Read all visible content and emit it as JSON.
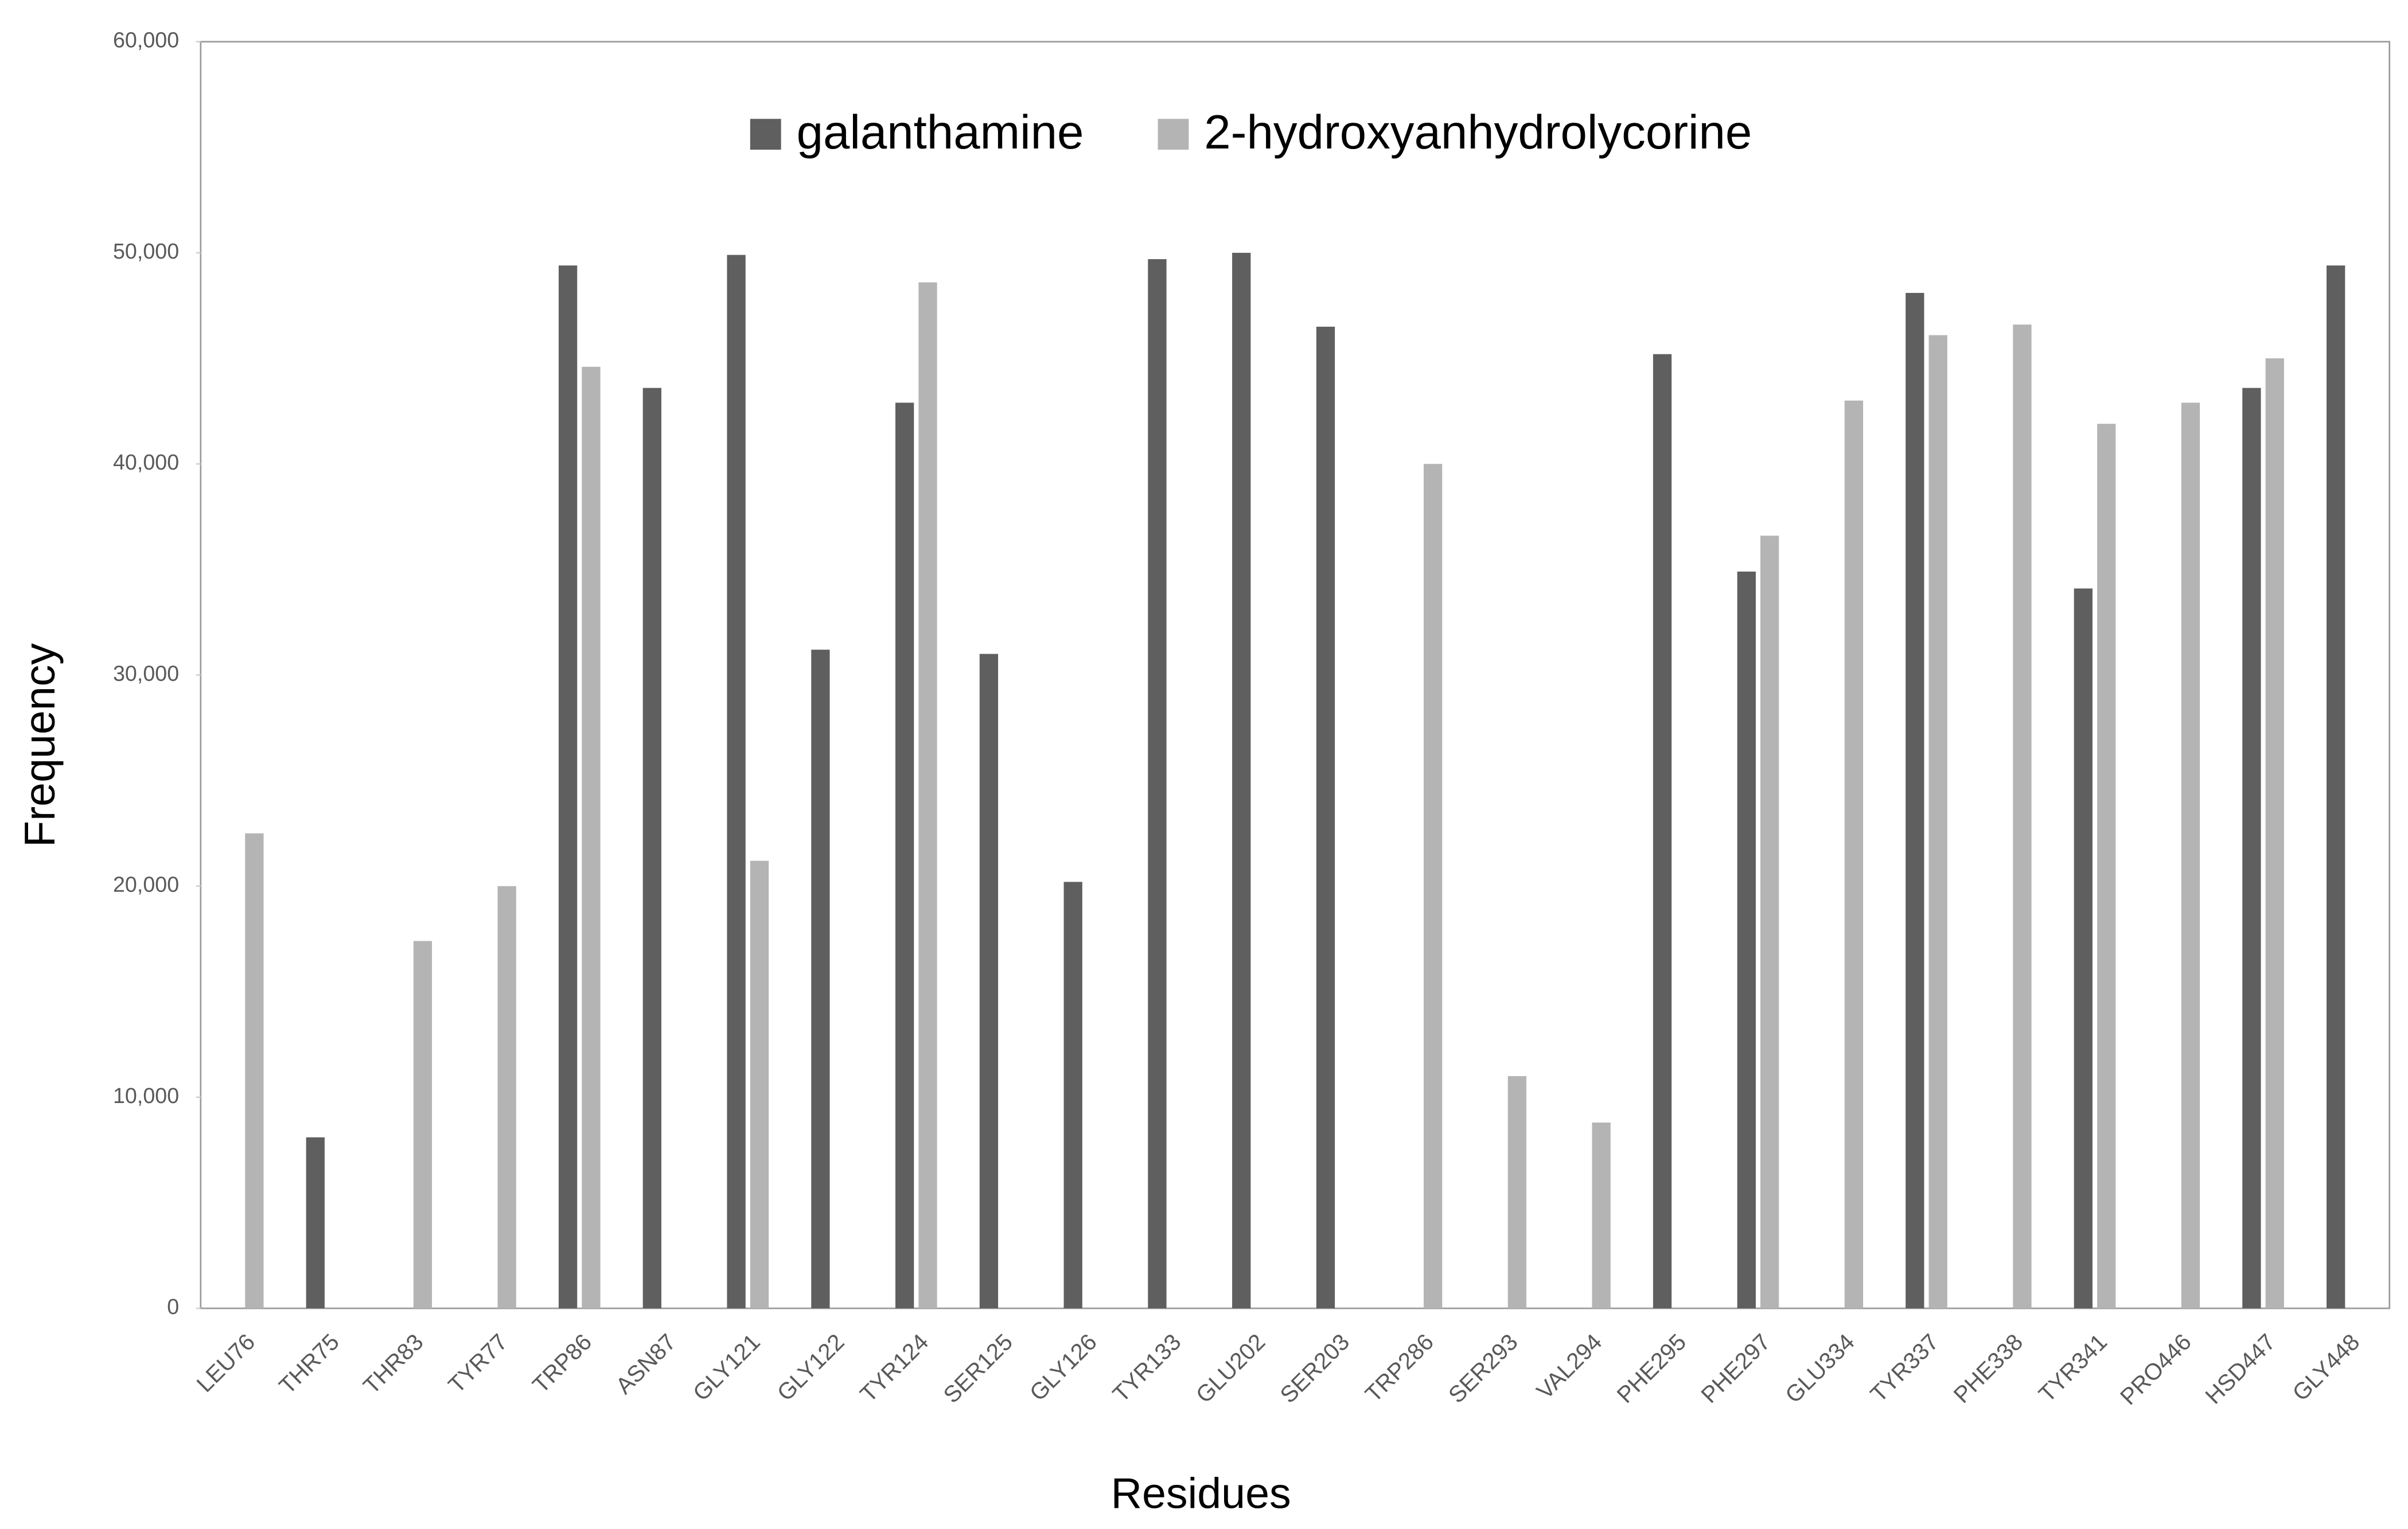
{
  "chart_data": {
    "type": "bar",
    "x_label": "Residues",
    "y_label": "Frequency",
    "categories": [
      "LEU76",
      "THR75",
      "THR83",
      "TYR77",
      "TRP86",
      "ASN87",
      "GLY121",
      "GLY122",
      "TYR124",
      "SER125",
      "GLY126",
      "TYR133",
      "GLU202",
      "SER203",
      "TRP286",
      "SER293",
      "VAL294",
      "PHE295",
      "PHE297",
      "GLU334",
      "TYR337",
      "PHE338",
      "TYR341",
      "PRO446",
      "HSD447",
      "GLY448"
    ],
    "series": [
      {
        "name": "galanthamine",
        "color": "#5f5f5f",
        "values": [
          null,
          8100,
          null,
          null,
          49400,
          43600,
          49900,
          31200,
          42900,
          31000,
          20200,
          49700,
          50000,
          46500,
          null,
          null,
          null,
          45200,
          34900,
          null,
          48100,
          null,
          34100,
          null,
          43600,
          49400
        ]
      },
      {
        "name": "2-hydroxyanhydrolycorine",
        "color": "#b4b4b4",
        "values": [
          22500,
          null,
          17400,
          20000,
          44600,
          null,
          21200,
          null,
          48600,
          null,
          null,
          null,
          null,
          null,
          40000,
          11000,
          8800,
          null,
          36600,
          43000,
          46100,
          46600,
          41900,
          42900,
          45000,
          null
        ]
      }
    ],
    "ylim": [
      0,
      60000
    ],
    "yticks": [
      0,
      {
        "value": 10000,
        "label": "10,000"
      },
      {
        "value": 20000,
        "label": "20,000"
      },
      {
        "value": 30000,
        "label": "30,000"
      },
      {
        "value": 40000,
        "label": "40,000"
      },
      {
        "value": 50000,
        "label": "50,000"
      },
      {
        "value": 60000,
        "label": "60,000"
      }
    ],
    "legend": "top",
    "grid": false
  }
}
